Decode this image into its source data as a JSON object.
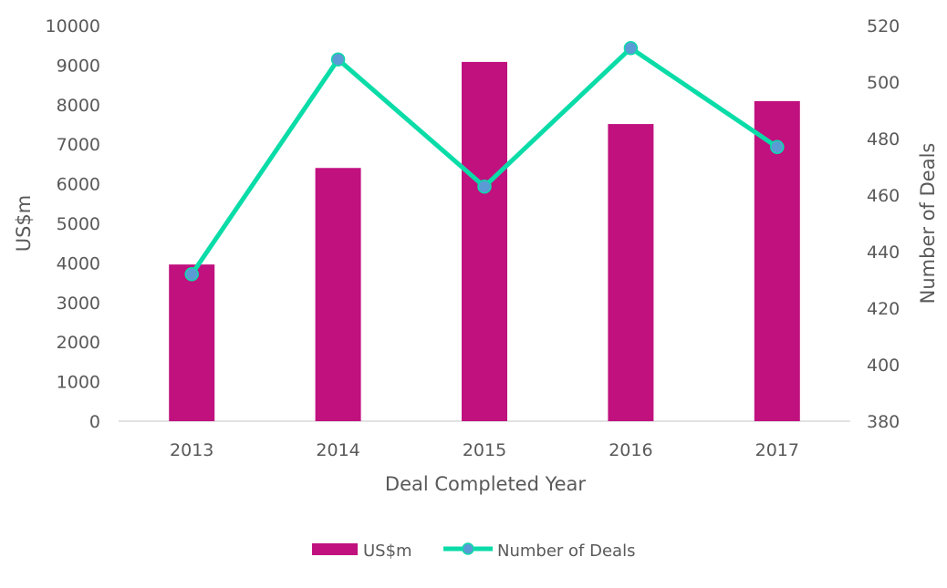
{
  "chart_data": {
    "type": "bar+line",
    "title": "",
    "xlabel": "Deal Completed Year",
    "ylabel": "US$m",
    "y2label": "Number of Deals",
    "categories": [
      "2013",
      "2014",
      "2015",
      "2016",
      "2017"
    ],
    "ylim": [
      0,
      10000
    ],
    "yticks": [
      0,
      1000,
      2000,
      3000,
      4000,
      5000,
      6000,
      7000,
      8000,
      9000,
      10000
    ],
    "y2lim": [
      380,
      520
    ],
    "y2ticks": [
      380,
      400,
      420,
      440,
      460,
      480,
      500,
      520
    ],
    "grid": false,
    "legend_position": "bottom",
    "series": [
      {
        "name": "US$m",
        "type": "bar",
        "axis": "left",
        "color": "#C0117F",
        "values": [
          3960,
          6400,
          9080,
          7510,
          8090
        ]
      },
      {
        "name": "Number of Deals",
        "type": "line",
        "axis": "right",
        "color": "#0ADCA8",
        "marker_color": "#5B9BD5",
        "values": [
          432,
          508,
          463,
          512,
          477
        ]
      }
    ]
  }
}
